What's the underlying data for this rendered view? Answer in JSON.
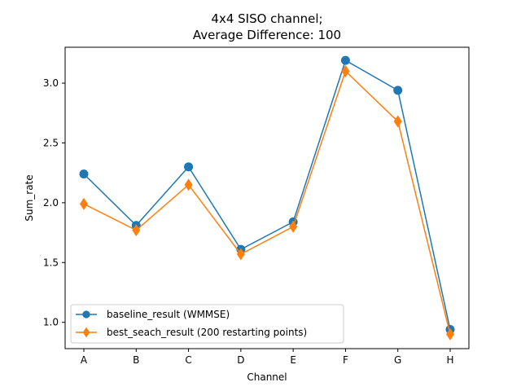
{
  "chart_data": {
    "type": "line",
    "title_lines": [
      "4x4 SISO channel;",
      "Average Difference: 100"
    ],
    "xlabel": "Channel",
    "ylabel": "Sum_rate",
    "categories": [
      "A",
      "B",
      "C",
      "D",
      "E",
      "F",
      "G",
      "H"
    ],
    "ylim": [
      0.78,
      3.3
    ],
    "yticks": [
      "1.0",
      "1.5",
      "2.0",
      "2.5",
      "3.0"
    ],
    "grid": false,
    "legend_position": "lower-left",
    "series": [
      {
        "name": "baseline_result (WMMSE)",
        "color": "#1f77b4",
        "marker": "circle",
        "values": [
          2.24,
          1.81,
          2.3,
          1.61,
          1.84,
          3.19,
          2.94,
          0.94
        ]
      },
      {
        "name": "best_seach_result (200 restarting points)",
        "color": "#ff7f0e",
        "marker": "diamond",
        "values": [
          1.99,
          1.77,
          2.15,
          1.57,
          1.8,
          3.1,
          2.68,
          0.9
        ]
      }
    ]
  }
}
